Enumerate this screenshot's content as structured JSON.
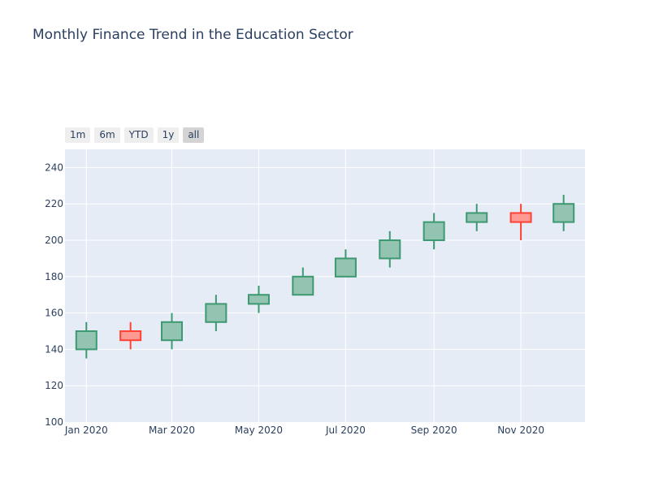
{
  "chart_data": {
    "type": "candlestick",
    "title": "Monthly Finance Trend in the Education Sector",
    "xlabel": "",
    "ylabel": "",
    "ylim": [
      100,
      250
    ],
    "y_ticks": [
      100,
      120,
      140,
      160,
      180,
      200,
      220,
      240
    ],
    "x_ticks": [
      {
        "label": "Jan 2020",
        "date": "2020-01-01"
      },
      {
        "label": "Mar 2020",
        "date": "2020-03-01"
      },
      {
        "label": "May 2020",
        "date": "2020-05-01"
      },
      {
        "label": "Jul 2020",
        "date": "2020-07-01"
      },
      {
        "label": "Sep 2020",
        "date": "2020-09-01"
      },
      {
        "label": "Nov 2020",
        "date": "2020-11-01"
      }
    ],
    "grid": true,
    "increasing_color": "#3d9970",
    "increasing_fill": "#93c3b1",
    "decreasing_color": "#ff4136",
    "decreasing_fill": "#ff9a93",
    "plot_background": "#e5ecf6",
    "x": [
      "2020-01-01",
      "2020-02-01",
      "2020-03-01",
      "2020-04-01",
      "2020-05-01",
      "2020-06-01",
      "2020-07-01",
      "2020-08-01",
      "2020-09-01",
      "2020-10-01",
      "2020-11-01",
      "2020-12-01"
    ],
    "open": [
      140,
      150,
      145,
      155,
      165,
      170,
      180,
      190,
      200,
      210,
      215,
      210
    ],
    "high": [
      155,
      155,
      160,
      170,
      175,
      185,
      195,
      205,
      215,
      220,
      220,
      225
    ],
    "low": [
      135,
      140,
      140,
      150,
      160,
      170,
      180,
      185,
      195,
      205,
      200,
      205
    ],
    "close": [
      150,
      145,
      155,
      165,
      170,
      180,
      190,
      200,
      210,
      215,
      210,
      220
    ]
  },
  "range_selector": {
    "buttons": [
      {
        "label": "1m",
        "active": false
      },
      {
        "label": "6m",
        "active": false
      },
      {
        "label": "YTD",
        "active": false
      },
      {
        "label": "1y",
        "active": false
      },
      {
        "label": "all",
        "active": true
      }
    ]
  }
}
